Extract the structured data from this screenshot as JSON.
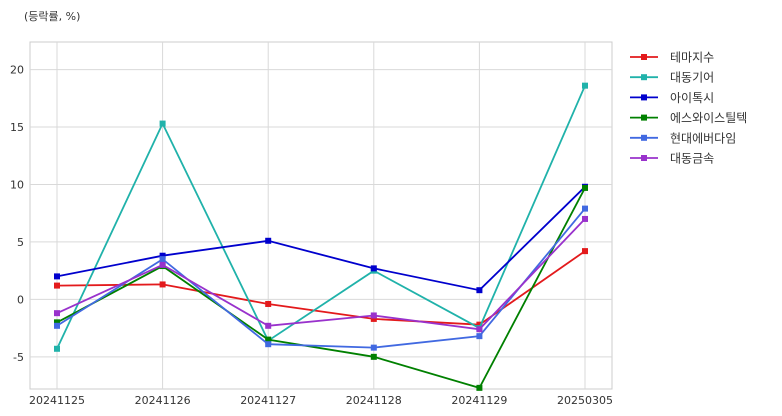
{
  "chart_data": {
    "type": "line",
    "unit_label": "(등락률, %)",
    "categories": [
      "20241125",
      "20241126",
      "20241127",
      "20241128",
      "20241129",
      "20250305"
    ],
    "ylim": [
      -7.8,
      22.4
    ],
    "yticks": [
      -5,
      0,
      5,
      10,
      15,
      20
    ],
    "grid": true,
    "legend_position": "right-outside-top",
    "series": [
      {
        "name": "테마지수",
        "color": "#e31a1c",
        "values": [
          1.2,
          1.3,
          -0.4,
          -1.7,
          -2.2,
          4.2
        ]
      },
      {
        "name": "대동기어",
        "color": "#20b2aa",
        "values": [
          -4.3,
          15.3,
          -3.6,
          2.5,
          -2.5,
          18.6
        ]
      },
      {
        "name": "아이톡시",
        "color": "#0000cd",
        "values": [
          2.0,
          3.8,
          5.1,
          2.7,
          0.8,
          9.8
        ]
      },
      {
        "name": "에스와이스틸텍",
        "color": "#008000",
        "values": [
          -2.0,
          2.9,
          -3.5,
          -5.0,
          -7.7,
          9.7
        ]
      },
      {
        "name": "현대에버다임",
        "color": "#4169e1",
        "values": [
          -2.3,
          3.5,
          -3.9,
          -4.2,
          -3.2,
          7.9
        ]
      },
      {
        "name": "대동금속",
        "color": "#9932cc",
        "values": [
          -1.2,
          3.0,
          -2.3,
          -1.4,
          -2.6,
          7.0
        ]
      }
    ]
  }
}
